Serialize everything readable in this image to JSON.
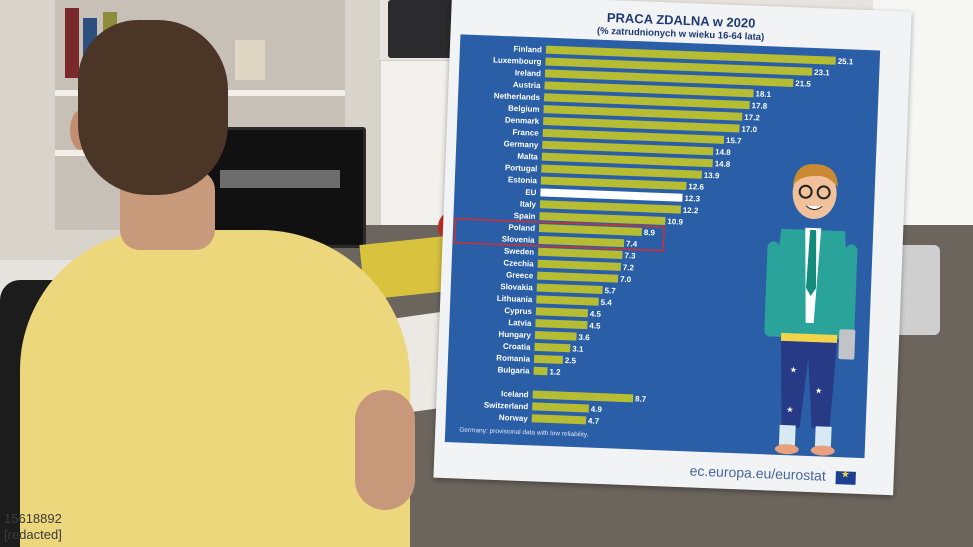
{
  "infographic": {
    "title": "PRACA ZDALNA w 2020",
    "subtitle": "(% zatrudnionych w wieku 16-64 lata)",
    "footnote": "Germany: provisional data with low reliability.",
    "source": "ec.europa.eu/eurostat"
  },
  "watermark": {
    "line1": "15618892",
    "line2": "[redacted]"
  },
  "colors": {
    "panel": "#2a5fa8",
    "bar": "#b7bd33",
    "eu_bar": "#ffffff",
    "highlight_box": "#d32f2f"
  },
  "chart_data": {
    "type": "bar",
    "orientation": "horizontal",
    "title": "PRACA ZDALNA w 2020",
    "subtitle": "(% zatrudnionych w wieku 16-64 lata)",
    "highlighted": [
      "Poland"
    ],
    "xlim": [
      0,
      25.1
    ],
    "categories": [
      "Finland",
      "Luxembourg",
      "Ireland",
      "Austria",
      "Netherlands",
      "Belgium",
      "Denmark",
      "France",
      "Germany",
      "Malta",
      "Portugal",
      "Estonia",
      "EU",
      "Italy",
      "Spain",
      "Poland",
      "Slovenia",
      "Sweden",
      "Czechia",
      "Greece",
      "Slovakia",
      "Lithuania",
      "Cyprus",
      "Latvia",
      "Hungary",
      "Croatia",
      "Romania",
      "Bulgaria",
      "",
      "Iceland",
      "Switzerland",
      "Norway"
    ],
    "values": [
      25.1,
      23.1,
      21.5,
      18.1,
      17.8,
      17.2,
      17.0,
      15.7,
      14.8,
      14.8,
      13.9,
      12.6,
      12.3,
      12.2,
      10.9,
      8.9,
      7.4,
      7.3,
      7.2,
      7.0,
      5.7,
      5.4,
      4.5,
      4.5,
      3.6,
      3.1,
      2.5,
      1.2,
      null,
      8.7,
      4.9,
      4.7
    ],
    "labels": [
      "25.1",
      "23.1",
      "21.5",
      "18.1",
      "17.8",
      "17.2",
      "17.0",
      "15.7",
      "14.8",
      "14.8",
      "13.9",
      "12.6",
      "12.3",
      "12.2",
      "10.9",
      "8.9",
      "7.4",
      "7.3",
      "7.2",
      "7.0",
      "5.7",
      "5.4",
      "4.5",
      "4.5",
      "3.6",
      "3.1",
      "2.5",
      "1.2",
      "",
      "8.7",
      "4.9",
      "4.7"
    ]
  }
}
